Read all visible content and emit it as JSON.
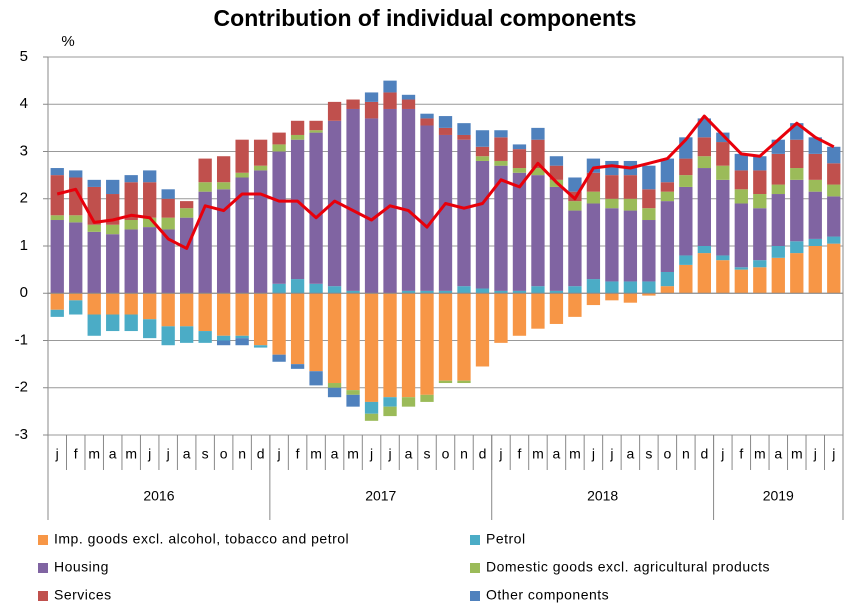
{
  "chart_data": {
    "type": "bar",
    "title": "Contribution of individual components",
    "y_unit": "%",
    "ylim": [
      -3,
      5
    ],
    "yticks": [
      -3,
      -2,
      -1,
      0,
      1,
      2,
      3,
      4,
      5
    ],
    "grid": true,
    "stacked": true,
    "categories": [
      "j",
      "f",
      "m",
      "a",
      "m",
      "j",
      "j",
      "a",
      "s",
      "o",
      "n",
      "d",
      "j",
      "f",
      "m",
      "a",
      "m",
      "j",
      "j",
      "a",
      "s",
      "o",
      "n",
      "d",
      "j",
      "f",
      "m",
      "a",
      "m",
      "j",
      "j",
      "a",
      "s",
      "o",
      "n",
      "d",
      "j",
      "f",
      "m",
      "a",
      "m",
      "j",
      "j"
    ],
    "x_groups": [
      {
        "label": "2016",
        "count": 12
      },
      {
        "label": "2017",
        "count": 12
      },
      {
        "label": "2018",
        "count": 12
      },
      {
        "label": "2019",
        "count": 7
      }
    ],
    "series": [
      {
        "name": "Imp. goods excl. alcohol, tobacco and petrol",
        "color": "#f79646",
        "values": [
          -0.35,
          -0.15,
          -0.45,
          -0.45,
          -0.45,
          -0.55,
          -0.7,
          -0.7,
          -0.8,
          -0.9,
          -0.9,
          -1.1,
          -1.3,
          -1.5,
          -1.65,
          -1.9,
          -2.05,
          -2.3,
          -2.2,
          -2.2,
          -2.15,
          -1.85,
          -1.85,
          -1.55,
          -1.05,
          -0.9,
          -0.75,
          -0.65,
          -0.5,
          -0.25,
          -0.15,
          -0.2,
          -0.05,
          0.15,
          0.6,
          0.85,
          0.7,
          0.5,
          0.55,
          0.75,
          0.85,
          1.0,
          1.05
        ]
      },
      {
        "name": "Petrol",
        "color": "#4bacc6",
        "values": [
          -0.15,
          -0.3,
          -0.45,
          -0.35,
          -0.35,
          -0.4,
          -0.4,
          -0.35,
          -0.25,
          -0.1,
          -0.05,
          -0.05,
          0.2,
          0.3,
          0.2,
          0.15,
          0.05,
          -0.25,
          -0.2,
          0.05,
          0.05,
          0.05,
          0.15,
          0.1,
          0.05,
          0.05,
          0.15,
          0.05,
          0.15,
          0.3,
          0.25,
          0.25,
          0.25,
          0.3,
          0.2,
          0.15,
          0.1,
          0.05,
          0.15,
          0.25,
          0.25,
          0.15,
          0.15
        ]
      },
      {
        "name": "Housing",
        "color": "#8064a2",
        "values": [
          1.55,
          1.5,
          1.3,
          1.25,
          1.35,
          1.4,
          1.35,
          1.6,
          2.15,
          2.2,
          2.45,
          2.6,
          2.8,
          2.95,
          3.2,
          3.5,
          3.85,
          3.7,
          3.9,
          3.85,
          3.5,
          3.3,
          3.1,
          2.7,
          2.65,
          2.5,
          2.35,
          2.2,
          1.6,
          1.6,
          1.55,
          1.5,
          1.3,
          1.5,
          1.45,
          1.65,
          1.6,
          1.35,
          1.1,
          1.1,
          1.3,
          1.0,
          0.85
        ]
      },
      {
        "name": "Domestic goods excl. agricultural products",
        "color": "#9bbb59",
        "values": [
          0.1,
          0.15,
          0.15,
          0.2,
          0.2,
          0.2,
          0.25,
          0.2,
          0.2,
          0.15,
          0.1,
          0.1,
          0.15,
          0.1,
          0.05,
          -0.1,
          -0.1,
          -0.15,
          -0.2,
          -0.2,
          -0.15,
          -0.05,
          -0.05,
          0.1,
          0.1,
          0.1,
          0.15,
          0.15,
          0.2,
          0.25,
          0.2,
          0.25,
          0.25,
          0.2,
          0.25,
          0.25,
          0.3,
          0.3,
          0.3,
          0.2,
          0.25,
          0.25,
          0.25
        ]
      },
      {
        "name": "Services",
        "color": "#c0504d",
        "values": [
          0.85,
          0.8,
          0.8,
          0.65,
          0.8,
          0.75,
          0.4,
          0.15,
          0.5,
          0.55,
          0.7,
          0.55,
          0.25,
          0.3,
          0.2,
          0.4,
          0.2,
          0.35,
          0.35,
          0.2,
          0.15,
          0.15,
          0.1,
          0.2,
          0.5,
          0.4,
          0.6,
          0.3,
          0.2,
          0.4,
          0.5,
          0.5,
          0.4,
          0.2,
          0.35,
          0.4,
          0.5,
          0.4,
          0.5,
          0.65,
          0.6,
          0.55,
          0.45
        ]
      },
      {
        "name": "Other components",
        "color": "#4f81bd",
        "values": [
          0.15,
          0.15,
          0.15,
          0.3,
          0.15,
          0.25,
          0.2,
          0,
          0,
          -0.1,
          -0.15,
          0,
          -0.15,
          -0.1,
          -0.3,
          -0.2,
          -0.25,
          0.2,
          0.25,
          0.1,
          0.1,
          0.25,
          0.25,
          0.35,
          0.15,
          0.1,
          0.25,
          0.2,
          0.3,
          0.3,
          0.3,
          0.3,
          0.5,
          0.5,
          0.45,
          0.4,
          0.2,
          0.35,
          0.3,
          0.3,
          0.35,
          0.35,
          0.35
        ]
      }
    ],
    "line": {
      "color": "#e8000b",
      "values": [
        2.1,
        2.2,
        1.5,
        1.55,
        1.65,
        1.6,
        1.15,
        0.95,
        1.85,
        1.75,
        2.1,
        2.1,
        1.95,
        1.95,
        1.6,
        1.95,
        1.75,
        1.55,
        1.85,
        1.75,
        1.4,
        1.9,
        1.8,
        1.9,
        2.4,
        2.25,
        2.75,
        2.35,
        2.0,
        2.65,
        2.7,
        2.65,
        2.75,
        2.85,
        3.25,
        3.75,
        3.35,
        2.95,
        2.9,
        3.25,
        3.6,
        3.3,
        3.1
      ]
    }
  }
}
